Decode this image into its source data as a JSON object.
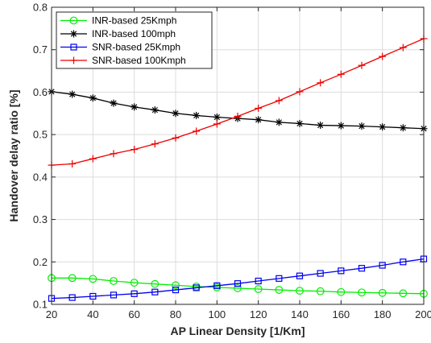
{
  "chart_data": {
    "type": "line",
    "title": "",
    "xlabel": "AP Linear Density [1/Km]",
    "ylabel": "Handover delay ratio [%]",
    "xlim": [
      20,
      200
    ],
    "ylim": [
      0.1,
      0.8
    ],
    "xticks": [
      "20",
      "40",
      "60",
      "80",
      "100",
      "120",
      "140",
      "160",
      "180",
      "200"
    ],
    "yticks": [
      "0.1",
      "0.2",
      "0.3",
      "0.4",
      "0.5",
      "0.6",
      "0.7",
      "0.8"
    ],
    "grid": true,
    "legend_position": "top-left",
    "x": [
      20,
      30,
      40,
      50,
      60,
      70,
      80,
      90,
      100,
      110,
      120,
      130,
      140,
      150,
      160,
      170,
      180,
      190,
      200
    ],
    "series": [
      {
        "name": "INR-based 25Kmph",
        "color": "#00ee00",
        "marker": "circle",
        "values": [
          0.162,
          0.162,
          0.16,
          0.155,
          0.151,
          0.148,
          0.145,
          0.142,
          0.14,
          0.138,
          0.136,
          0.134,
          0.132,
          0.131,
          0.129,
          0.128,
          0.127,
          0.126,
          0.125
        ]
      },
      {
        "name": "INR-based 100mph",
        "color": "#000000",
        "marker": "asterisk",
        "values": [
          0.601,
          0.595,
          0.586,
          0.574,
          0.565,
          0.558,
          0.55,
          0.545,
          0.541,
          0.538,
          0.535,
          0.529,
          0.526,
          0.522,
          0.521,
          0.52,
          0.518,
          0.516,
          0.514
        ]
      },
      {
        "name": "SNR-based 25Kmph",
        "color": "#0000ee",
        "marker": "square",
        "values": [
          0.114,
          0.116,
          0.119,
          0.122,
          0.125,
          0.129,
          0.134,
          0.139,
          0.144,
          0.149,
          0.155,
          0.161,
          0.167,
          0.173,
          0.179,
          0.185,
          0.192,
          0.2,
          0.207
        ]
      },
      {
        "name": "SNR-based 100Kmph",
        "color": "#ee0000",
        "marker": "plus",
        "values": [
          0.428,
          0.431,
          0.443,
          0.455,
          0.465,
          0.478,
          0.492,
          0.508,
          0.525,
          0.543,
          0.562,
          0.58,
          0.601,
          0.622,
          0.642,
          0.663,
          0.684,
          0.705,
          0.726
        ]
      }
    ]
  }
}
